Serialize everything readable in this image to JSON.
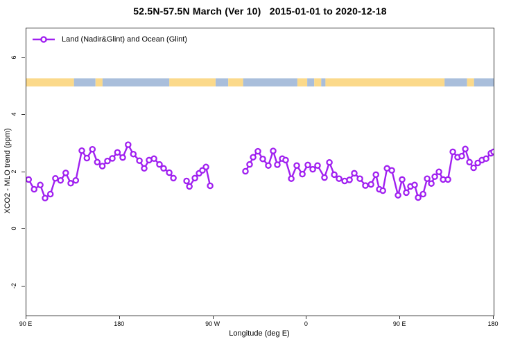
{
  "title": "52.5N-57.5N March (Ver 10)   2015-01-01 to 2020-12-18",
  "legend": {
    "label": "Land (Nadir&Glint) and Ocean (Glint)"
  },
  "colors": {
    "series": "#A020F0",
    "marker_fill": "#ffffff",
    "land": "#FBD98A",
    "ocean": "#A9BEDB",
    "axis": "#2e2e2e",
    "text": "#000000"
  },
  "x_axis": {
    "label": "Longitude (deg E)",
    "range_deg_extended": [
      90,
      540
    ],
    "ticks": [
      {
        "deg": 90,
        "label": "90 E"
      },
      {
        "deg": 180,
        "label": "180"
      },
      {
        "deg": 270,
        "label": "90 W"
      },
      {
        "deg": 360,
        "label": "0"
      },
      {
        "deg": 450,
        "label": "90 E"
      },
      {
        "deg": 540,
        "label": "180"
      }
    ]
  },
  "y_axis": {
    "label": "XCO2 - MLO trend (ppm)",
    "range": [
      -3.02,
      7.03
    ],
    "ticks": [
      6,
      4,
      2,
      0,
      -2
    ]
  },
  "land_ocean_band": {
    "y_range_ppm": [
      5.0,
      5.28
    ],
    "segments": [
      {
        "from": 0.0,
        "to": 0.102,
        "type": "land"
      },
      {
        "from": 0.102,
        "to": 0.148,
        "type": "ocean"
      },
      {
        "from": 0.148,
        "to": 0.163,
        "type": "land"
      },
      {
        "from": 0.163,
        "to": 0.306,
        "type": "ocean"
      },
      {
        "from": 0.306,
        "to": 0.405,
        "type": "land"
      },
      {
        "from": 0.405,
        "to": 0.432,
        "type": "ocean"
      },
      {
        "from": 0.432,
        "to": 0.464,
        "type": "land"
      },
      {
        "from": 0.464,
        "to": 0.58,
        "type": "ocean"
      },
      {
        "from": 0.58,
        "to": 0.601,
        "type": "land"
      },
      {
        "from": 0.601,
        "to": 0.616,
        "type": "ocean"
      },
      {
        "from": 0.616,
        "to": 0.631,
        "type": "land"
      },
      {
        "from": 0.631,
        "to": 0.64,
        "type": "ocean"
      },
      {
        "from": 0.64,
        "to": 0.895,
        "type": "land"
      },
      {
        "from": 0.895,
        "to": 0.943,
        "type": "ocean"
      },
      {
        "from": 0.943,
        "to": 0.958,
        "type": "land"
      },
      {
        "from": 0.958,
        "to": 1.0,
        "type": "ocean"
      }
    ]
  },
  "chart_data": {
    "type": "line",
    "title": "52.5N-57.5N March (Ver 10)   2015-01-01 to 2020-12-18",
    "xlabel": "Longitude (deg E)",
    "ylabel": "XCO2 - MLO trend (ppm)",
    "x_range": [
      90,
      540
    ],
    "y_range": [
      -3.02,
      7.03
    ],
    "legend_position": "top-left",
    "grid": false,
    "series_name": "Land (Nadir&Glint) and Ocean (Glint)",
    "x_unit": "degrees east of Greenwich, axis wraps 90E→180→90W→0→90E→180",
    "segments": [
      [
        [
          92.2,
          1.74
        ],
        [
          97.5,
          1.4
        ],
        [
          103.4,
          1.55
        ],
        [
          108.0,
          1.09
        ],
        [
          113.2,
          1.23
        ],
        [
          118.0,
          1.78
        ],
        [
          122.9,
          1.71
        ],
        [
          127.9,
          1.97
        ],
        [
          132.7,
          1.61
        ],
        [
          137.6,
          1.71
        ],
        [
          143.4,
          2.75
        ],
        [
          148.3,
          2.49
        ],
        [
          153.6,
          2.8
        ],
        [
          158.3,
          2.35
        ],
        [
          163.2,
          2.21
        ],
        [
          168.1,
          2.39
        ],
        [
          172.8,
          2.48
        ],
        [
          177.7,
          2.69
        ],
        [
          182.8,
          2.51
        ],
        [
          188.0,
          2.96
        ],
        [
          193.0,
          2.63
        ],
        [
          198.9,
          2.4
        ],
        [
          203.5,
          2.13
        ],
        [
          208.2,
          2.42
        ],
        [
          212.9,
          2.47
        ],
        [
          218.2,
          2.27
        ],
        [
          222.2,
          2.13
        ],
        [
          227.6,
          1.98
        ],
        [
          231.6,
          1.79
        ]
      ],
      [
        [
          244.3,
          1.69
        ],
        [
          247.0,
          1.5
        ],
        [
          252.3,
          1.79
        ],
        [
          256.3,
          1.96
        ],
        [
          259.6,
          2.06
        ],
        [
          263.0,
          2.18
        ],
        [
          267.0,
          1.52
        ]
      ],
      [
        [
          301.0,
          2.03
        ],
        [
          305.0,
          2.27
        ],
        [
          308.4,
          2.52
        ],
        [
          313.0,
          2.73
        ],
        [
          317.7,
          2.46
        ],
        [
          323.0,
          2.23
        ],
        [
          327.7,
          2.74
        ],
        [
          331.7,
          2.26
        ],
        [
          336.4,
          2.47
        ],
        [
          339.7,
          2.42
        ],
        [
          345.1,
          1.77
        ],
        [
          350.4,
          2.23
        ],
        [
          355.8,
          1.93
        ],
        [
          361.1,
          2.25
        ],
        [
          365.8,
          2.1
        ],
        [
          370.4,
          2.23
        ],
        [
          377.1,
          1.81
        ],
        [
          381.8,
          2.34
        ],
        [
          386.5,
          1.91
        ],
        [
          391.1,
          1.77
        ],
        [
          396.5,
          1.69
        ],
        [
          401.2,
          1.73
        ],
        [
          405.8,
          1.96
        ],
        [
          411.2,
          1.77
        ],
        [
          416.5,
          1.53
        ],
        [
          421.9,
          1.57
        ],
        [
          426.6,
          1.91
        ],
        [
          429.9,
          1.4
        ],
        [
          433.3,
          1.35
        ],
        [
          437.3,
          2.13
        ],
        [
          441.9,
          2.06
        ],
        [
          447.9,
          1.19
        ],
        [
          451.9,
          1.74
        ],
        [
          455.9,
          1.28
        ],
        [
          459.9,
          1.5
        ],
        [
          463.9,
          1.55
        ],
        [
          467.3,
          1.11
        ],
        [
          472.0,
          1.23
        ],
        [
          476.0,
          1.77
        ],
        [
          480.0,
          1.6
        ],
        [
          483.3,
          1.84
        ],
        [
          487.3,
          2.01
        ],
        [
          491.3,
          1.74
        ],
        [
          496.0,
          1.74
        ],
        [
          500.7,
          2.71
        ],
        [
          505.3,
          2.52
        ],
        [
          509.3,
          2.56
        ],
        [
          512.7,
          2.81
        ],
        [
          516.7,
          2.35
        ],
        [
          520.7,
          2.15
        ],
        [
          524.7,
          2.32
        ],
        [
          528.7,
          2.42
        ],
        [
          532.7,
          2.47
        ],
        [
          537.3,
          2.66
        ],
        [
          540.0,
          2.71
        ]
      ]
    ]
  }
}
